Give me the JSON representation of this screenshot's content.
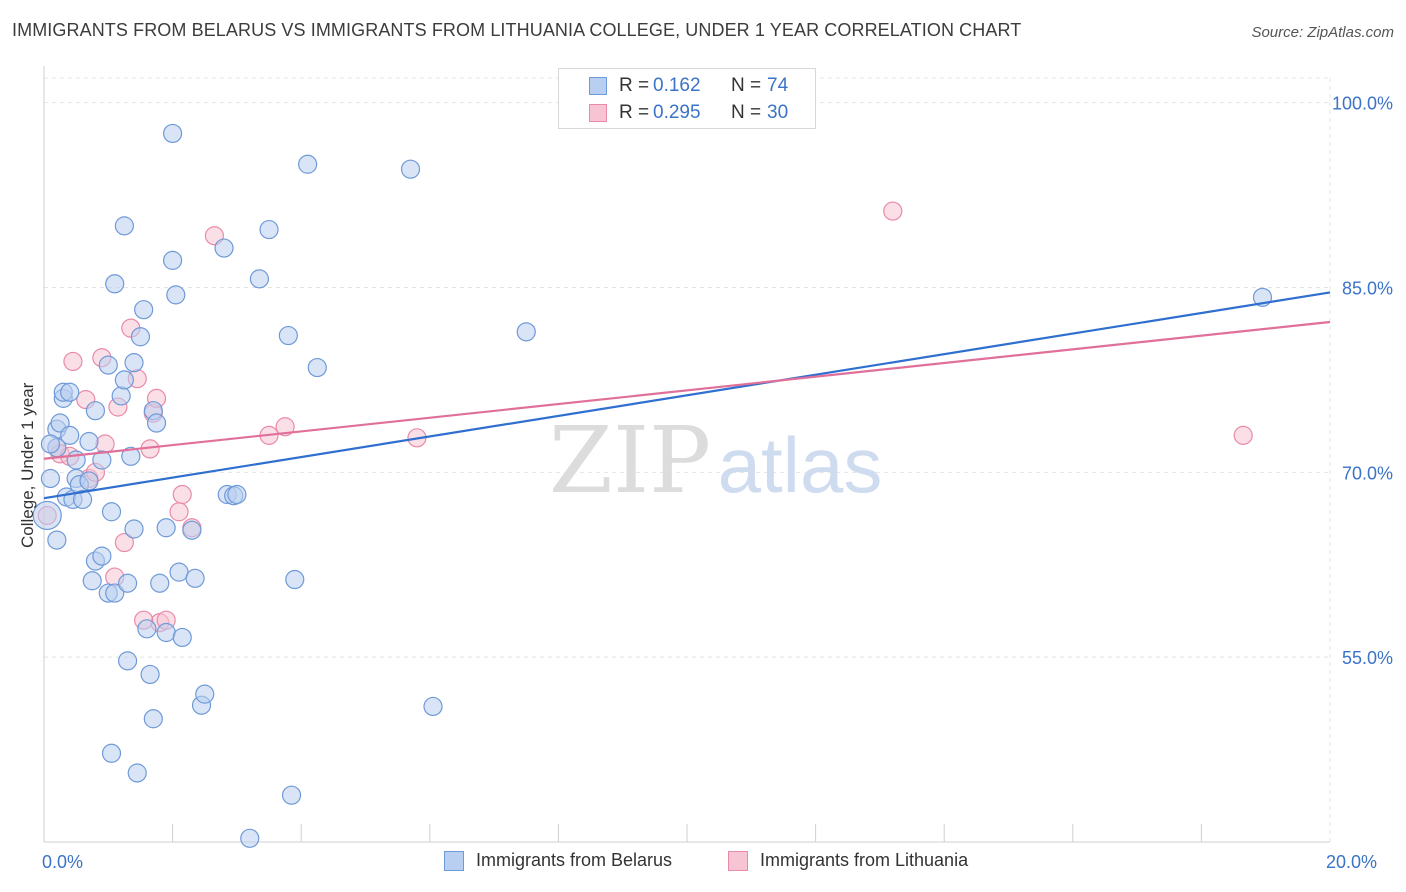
{
  "title": "IMMIGRANTS FROM BELARUS VS IMMIGRANTS FROM LITHUANIA COLLEGE, UNDER 1 YEAR CORRELATION CHART",
  "source": "Source: ZipAtlas.com",
  "watermark": {
    "zip": "ZIP",
    "atlas": "atlas"
  },
  "colors": {
    "belarus_fill": "#b9cff1",
    "belarus_stroke": "#6f9ad8",
    "belarus_line": "#2f6fcf",
    "lithuania_fill": "#f7c4d4",
    "lithuania_stroke": "#e98aa8",
    "lithuania_line": "#e0709a",
    "axis_text": "#3a73c8",
    "grid": "#e4e4e4"
  },
  "legend_top": [
    {
      "r_key": "R =",
      "r": "0.162",
      "n_key": "N =",
      "n": "74"
    },
    {
      "r_key": "R =",
      "r": "0.295",
      "n_key": "N =",
      "n": "30"
    }
  ],
  "chart_data": {
    "type": "scatter",
    "title": "IMMIGRANTS FROM BELARUS VS IMMIGRANTS FROM LITHUANIA COLLEGE, UNDER 1 YEAR CORRELATION CHART",
    "xlabel": "",
    "ylabel": "College, Under 1 year",
    "xlim": [
      0,
      20
    ],
    "ylim": [
      40,
      102
    ],
    "x_tick_labels": [
      "0.0%",
      "20.0%"
    ],
    "y_ticks": [
      55,
      70,
      85,
      100
    ],
    "y_tick_labels": [
      "55.0%",
      "70.0%",
      "85.0%",
      "100.0%"
    ],
    "grid": true,
    "legend_position": "bottom",
    "series": [
      {
        "name": "Immigrants from Belarus",
        "points": [
          [
            0.1,
            69.5
          ],
          [
            0.2,
            72
          ],
          [
            0.2,
            73.5
          ],
          [
            0.2,
            64.5
          ],
          [
            0.25,
            74
          ],
          [
            0.3,
            76
          ],
          [
            0.3,
            76.5
          ],
          [
            0.4,
            76.5
          ],
          [
            0.35,
            68
          ],
          [
            0.4,
            73
          ],
          [
            0.45,
            67.8
          ],
          [
            0.5,
            69.5
          ],
          [
            0.5,
            71
          ],
          [
            0.55,
            69
          ],
          [
            0.6,
            67.8
          ],
          [
            0.7,
            69.3
          ],
          [
            0.7,
            72.5
          ],
          [
            0.75,
            61.2
          ],
          [
            0.8,
            62.8
          ],
          [
            0.8,
            75
          ],
          [
            0.9,
            63.2
          ],
          [
            0.9,
            71
          ],
          [
            1.0,
            78.7
          ],
          [
            1.0,
            60.2
          ],
          [
            1.05,
            66.8
          ],
          [
            1.1,
            60.2
          ],
          [
            1.1,
            85.3
          ],
          [
            1.2,
            76.2
          ],
          [
            1.25,
            77.5
          ],
          [
            1.25,
            90
          ],
          [
            1.3,
            54.7
          ],
          [
            1.3,
            61
          ],
          [
            1.35,
            71.3
          ],
          [
            1.4,
            78.9
          ],
          [
            1.4,
            65.4
          ],
          [
            1.5,
            81
          ],
          [
            1.55,
            83.2
          ],
          [
            1.6,
            57.3
          ],
          [
            1.65,
            53.6
          ],
          [
            1.7,
            75
          ],
          [
            1.75,
            74
          ],
          [
            1.7,
            50
          ],
          [
            1.8,
            61
          ],
          [
            1.9,
            57
          ],
          [
            1.9,
            65.5
          ],
          [
            2.0,
            87.2
          ],
          [
            2.0,
            97.5
          ],
          [
            2.05,
            84.4
          ],
          [
            2.1,
            61.9
          ],
          [
            2.15,
            56.6
          ],
          [
            2.3,
            65.3
          ],
          [
            2.35,
            61.4
          ],
          [
            2.45,
            51.1
          ],
          [
            2.5,
            52
          ],
          [
            2.8,
            88.2
          ],
          [
            2.85,
            68.2
          ],
          [
            2.95,
            68.1
          ],
          [
            3.0,
            68.2
          ],
          [
            3.2,
            40.3
          ],
          [
            3.35,
            85.7
          ],
          [
            3.5,
            89.7
          ],
          [
            3.8,
            81.1
          ],
          [
            3.85,
            43.8
          ],
          [
            3.9,
            61.3
          ],
          [
            4.1,
            95
          ],
          [
            4.25,
            78.5
          ],
          [
            5.7,
            94.6
          ],
          [
            6.05,
            51
          ],
          [
            7.5,
            81.4
          ],
          [
            1.05,
            47.2
          ],
          [
            1.45,
            45.6
          ],
          [
            0.05,
            66.5
          ],
          [
            0.1,
            72.3
          ],
          [
            18.95,
            84.2
          ]
        ]
      },
      {
        "name": "Immigrants from Lithuania",
        "points": [
          [
            0.05,
            66.5
          ],
          [
            0.2,
            72
          ],
          [
            0.25,
            71.5
          ],
          [
            0.4,
            71.3
          ],
          [
            0.45,
            79
          ],
          [
            0.7,
            69.5
          ],
          [
            0.65,
            75.9
          ],
          [
            0.8,
            70
          ],
          [
            0.9,
            79.3
          ],
          [
            0.95,
            72.3
          ],
          [
            1.15,
            75.3
          ],
          [
            1.25,
            64.3
          ],
          [
            1.1,
            61.5
          ],
          [
            1.35,
            81.7
          ],
          [
            1.45,
            77.6
          ],
          [
            1.65,
            71.9
          ],
          [
            1.7,
            74.8
          ],
          [
            1.75,
            76
          ],
          [
            1.8,
            57.8
          ],
          [
            1.9,
            58
          ],
          [
            2.1,
            66.8
          ],
          [
            2.15,
            68.2
          ],
          [
            2.3,
            65.5
          ],
          [
            2.65,
            89.2
          ],
          [
            3.5,
            73
          ],
          [
            3.75,
            73.7
          ],
          [
            5.8,
            72.8
          ],
          [
            1.55,
            58
          ],
          [
            13.2,
            91.2
          ],
          [
            18.65,
            73
          ]
        ]
      }
    ],
    "trend_lines": [
      {
        "name": "Immigrants from Belarus",
        "from": [
          0,
          67.9
        ],
        "to": [
          20,
          84.6
        ]
      },
      {
        "name": "Immigrants from Lithuania",
        "from": [
          0,
          71.1
        ],
        "to": [
          20,
          82.2
        ]
      }
    ]
  },
  "legend_bottom": [
    {
      "label": "Immigrants from Belarus"
    },
    {
      "label": "Immigrants from Lithuania"
    }
  ]
}
